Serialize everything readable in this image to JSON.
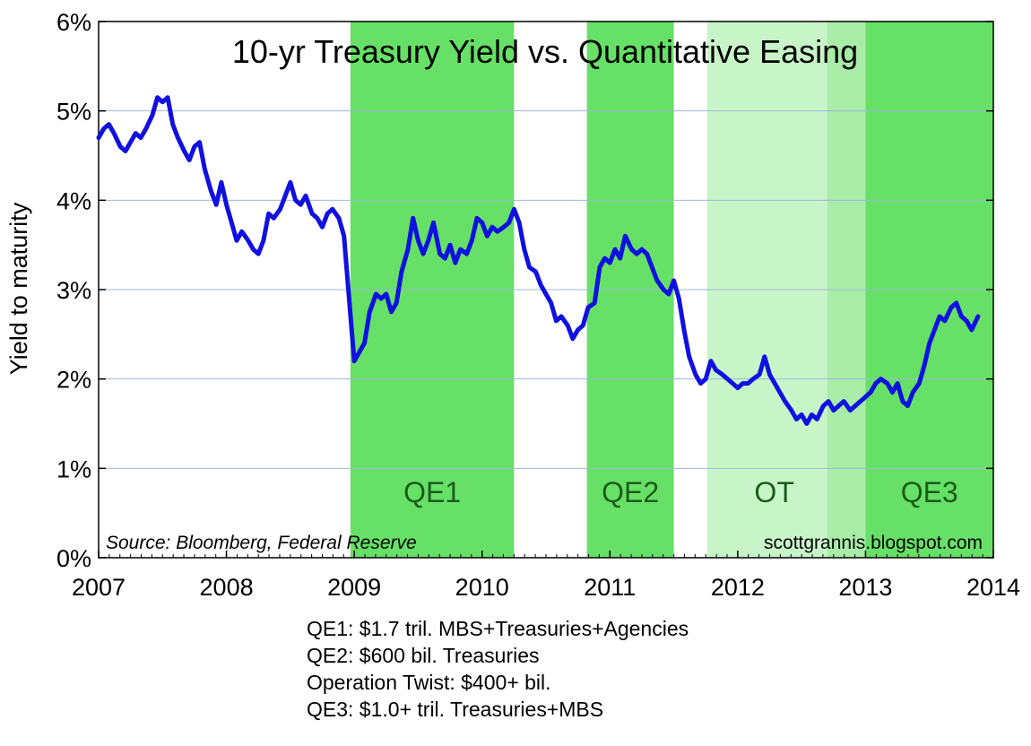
{
  "chart_data": {
    "type": "line",
    "title": "10-yr Treasury Yield vs. Quantitative Easing",
    "ylabel": "Yield to maturity",
    "xlabel": "",
    "xlim": [
      2007.0,
      2014.0
    ],
    "ylim": [
      0,
      6
    ],
    "x_ticks": [
      {
        "value": 2007,
        "label": "2007"
      },
      {
        "value": 2008,
        "label": "2008"
      },
      {
        "value": 2009,
        "label": "2009"
      },
      {
        "value": 2010,
        "label": "2010"
      },
      {
        "value": 2011,
        "label": "2011"
      },
      {
        "value": 2012,
        "label": "2012"
      },
      {
        "value": 2013,
        "label": "2013"
      },
      {
        "value": 2014,
        "label": "2014"
      }
    ],
    "y_ticks": [
      {
        "value": 0,
        "label": "0%"
      },
      {
        "value": 1,
        "label": "1%"
      },
      {
        "value": 2,
        "label": "2%"
      },
      {
        "value": 3,
        "label": "3%"
      },
      {
        "value": 4,
        "label": "4%"
      },
      {
        "value": 5,
        "label": "5%"
      },
      {
        "value": 6,
        "label": "6%"
      }
    ],
    "grid": "horizontal",
    "bands": [
      {
        "label": "QE1",
        "start": 2008.97,
        "end": 2010.25,
        "color": "#66e066"
      },
      {
        "label": "QE2",
        "start": 2010.82,
        "end": 2011.5,
        "color": "#66e066"
      },
      {
        "label": "OT",
        "start": 2011.76,
        "end": 2012.7,
        "color": "#c8f5c8"
      },
      {
        "label": "",
        "start": 2012.7,
        "end": 2013.0,
        "color": "#a8eca8"
      },
      {
        "label": "QE3",
        "start": 2013.0,
        "end": 2014.0,
        "color": "#66e066"
      }
    ],
    "series": [
      {
        "color": "#1010e0",
        "x": [
          2007.0,
          2007.04,
          2007.08,
          2007.12,
          2007.17,
          2007.21,
          2007.25,
          2007.29,
          2007.33,
          2007.37,
          2007.42,
          2007.46,
          2007.5,
          2007.54,
          2007.58,
          2007.62,
          2007.67,
          2007.71,
          2007.75,
          2007.79,
          2007.83,
          2007.88,
          2007.92,
          2007.96,
          2008.0,
          2008.04,
          2008.08,
          2008.12,
          2008.17,
          2008.21,
          2008.25,
          2008.29,
          2008.33,
          2008.37,
          2008.42,
          2008.46,
          2008.5,
          2008.54,
          2008.58,
          2008.62,
          2008.67,
          2008.71,
          2008.75,
          2008.79,
          2008.83,
          2008.88,
          2008.92,
          2008.96,
          2009.0,
          2009.04,
          2009.08,
          2009.12,
          2009.17,
          2009.21,
          2009.25,
          2009.29,
          2009.33,
          2009.37,
          2009.42,
          2009.46,
          2009.5,
          2009.54,
          2009.58,
          2009.62,
          2009.67,
          2009.71,
          2009.75,
          2009.79,
          2009.83,
          2009.88,
          2009.92,
          2009.96,
          2010.0,
          2010.04,
          2010.08,
          2010.12,
          2010.17,
          2010.21,
          2010.25,
          2010.29,
          2010.33,
          2010.37,
          2010.42,
          2010.46,
          2010.5,
          2010.54,
          2010.58,
          2010.62,
          2010.67,
          2010.71,
          2010.75,
          2010.79,
          2010.83,
          2010.88,
          2010.92,
          2010.96,
          2011.0,
          2011.04,
          2011.08,
          2011.12,
          2011.17,
          2011.21,
          2011.25,
          2011.29,
          2011.33,
          2011.37,
          2011.42,
          2011.46,
          2011.5,
          2011.54,
          2011.58,
          2011.62,
          2011.67,
          2011.71,
          2011.75,
          2011.79,
          2011.83,
          2011.88,
          2011.92,
          2011.96,
          2012.0,
          2012.04,
          2012.08,
          2012.12,
          2012.17,
          2012.21,
          2012.25,
          2012.29,
          2012.33,
          2012.37,
          2012.42,
          2012.46,
          2012.5,
          2012.54,
          2012.58,
          2012.62,
          2012.67,
          2012.71,
          2012.75,
          2012.79,
          2012.83,
          2012.88,
          2012.92,
          2012.96,
          2013.0,
          2013.04,
          2013.08,
          2013.12,
          2013.17,
          2013.21,
          2013.25,
          2013.29,
          2013.33,
          2013.37,
          2013.42,
          2013.46,
          2013.5,
          2013.54,
          2013.58,
          2013.62,
          2013.67,
          2013.71,
          2013.75,
          2013.79,
          2013.83,
          2013.88
        ],
        "y": [
          4.7,
          4.8,
          4.85,
          4.75,
          4.6,
          4.55,
          4.65,
          4.75,
          4.7,
          4.8,
          4.95,
          5.15,
          5.1,
          5.15,
          4.85,
          4.7,
          4.55,
          4.45,
          4.6,
          4.65,
          4.35,
          4.1,
          3.95,
          4.2,
          3.95,
          3.75,
          3.55,
          3.65,
          3.55,
          3.45,
          3.4,
          3.55,
          3.85,
          3.8,
          3.9,
          4.05,
          4.2,
          4.0,
          3.95,
          4.05,
          3.85,
          3.8,
          3.7,
          3.85,
          3.9,
          3.8,
          3.6,
          2.9,
          2.2,
          2.3,
          2.4,
          2.75,
          2.95,
          2.9,
          2.95,
          2.75,
          2.85,
          3.2,
          3.45,
          3.8,
          3.55,
          3.4,
          3.55,
          3.75,
          3.4,
          3.35,
          3.5,
          3.3,
          3.45,
          3.4,
          3.55,
          3.8,
          3.75,
          3.6,
          3.7,
          3.65,
          3.7,
          3.75,
          3.9,
          3.75,
          3.45,
          3.25,
          3.2,
          3.05,
          2.95,
          2.85,
          2.65,
          2.7,
          2.6,
          2.45,
          2.55,
          2.6,
          2.8,
          2.85,
          3.25,
          3.35,
          3.3,
          3.45,
          3.35,
          3.6,
          3.45,
          3.4,
          3.45,
          3.4,
          3.25,
          3.1,
          3.0,
          2.95,
          3.1,
          2.9,
          2.55,
          2.25,
          2.05,
          1.95,
          2.0,
          2.2,
          2.1,
          2.05,
          2.0,
          1.95,
          1.9,
          1.95,
          1.95,
          2.0,
          2.05,
          2.25,
          2.05,
          1.95,
          1.85,
          1.75,
          1.65,
          1.55,
          1.6,
          1.5,
          1.6,
          1.55,
          1.7,
          1.75,
          1.65,
          1.7,
          1.75,
          1.65,
          1.7,
          1.75,
          1.8,
          1.85,
          1.95,
          2.0,
          1.95,
          1.85,
          1.95,
          1.75,
          1.7,
          1.85,
          1.95,
          2.15,
          2.4,
          2.55,
          2.7,
          2.65,
          2.8,
          2.85,
          2.7,
          2.65,
          2.55,
          2.7
        ]
      }
    ],
    "annotations": {
      "source": "Source: Bloomberg, Federal Reserve",
      "credit": "scottgrannis.blogspot.com"
    }
  },
  "footnotes": [
    "QE1: $1.7 tril. MBS+Treasuries+Agencies",
    "QE2: $600 bil. Treasuries",
    "Operation Twist: $400+ bil.",
    "QE3: $1.0+ tril. Treasuries+MBS"
  ]
}
